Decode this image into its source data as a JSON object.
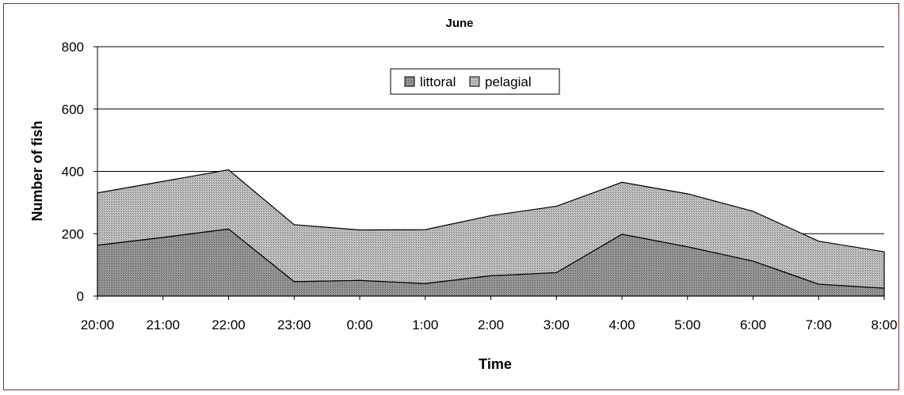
{
  "chart_data": {
    "type": "area",
    "stacked": true,
    "title": "June",
    "xlabel": "Time",
    "ylabel": "Number of fish",
    "categories": [
      "20:00",
      "21:00",
      "22:00",
      "23:00",
      "0:00",
      "1:00",
      "2:00",
      "3:00",
      "4:00",
      "5:00",
      "6:00",
      "7:00",
      "8:00"
    ],
    "series": [
      {
        "name": "littoral",
        "values": [
          163,
          188,
          215,
          46,
          50,
          40,
          65,
          75,
          198,
          158,
          112,
          38,
          25
        ],
        "color": "#8c8c8c"
      },
      {
        "name": "pelagial",
        "values": [
          168,
          180,
          190,
          183,
          162,
          173,
          193,
          213,
          167,
          170,
          160,
          138,
          117
        ],
        "color": "#a8a8a8"
      }
    ],
    "ylim": [
      0,
      800
    ],
    "yticks": [
      0,
      200,
      400,
      600,
      800
    ],
    "grid": true,
    "legend": "top-center"
  }
}
